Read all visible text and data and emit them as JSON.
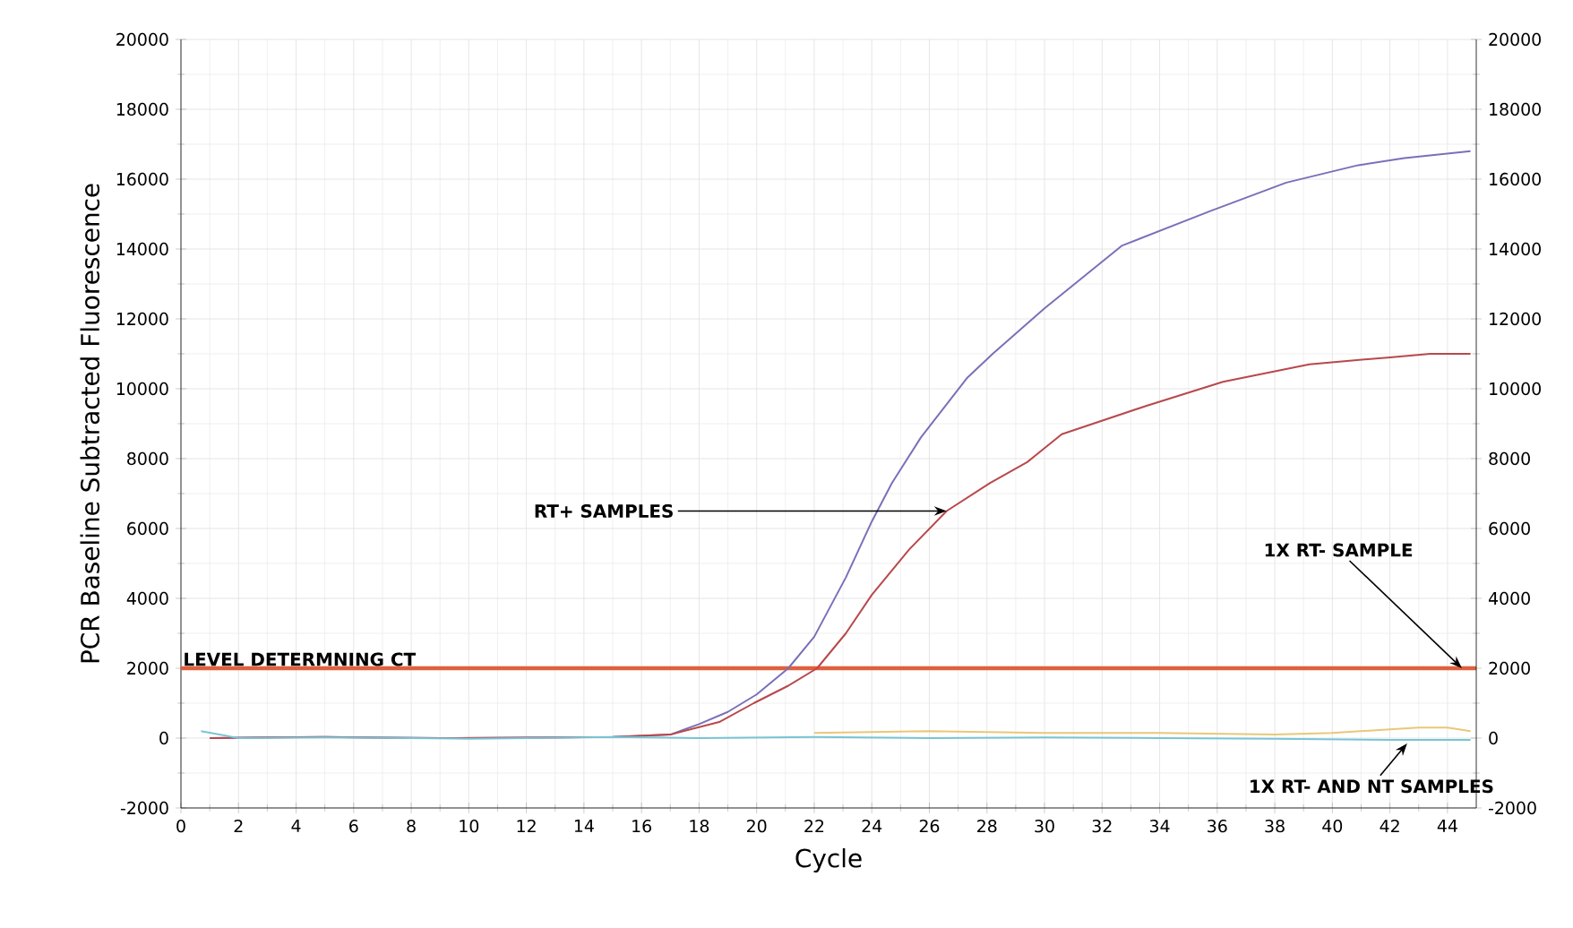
{
  "chart_data": {
    "type": "line",
    "xlabel": "Cycle",
    "ylabel": "PCR Baseline Subtracted Fluorescence",
    "xlim": [
      0,
      45
    ],
    "xticks": [
      0,
      2,
      4,
      6,
      8,
      10,
      12,
      14,
      16,
      18,
      20,
      22,
      24,
      26,
      28,
      30,
      32,
      34,
      36,
      38,
      40,
      42,
      44
    ],
    "ylim": [
      -2000,
      20000
    ],
    "yticks": [
      -2000,
      0,
      2000,
      4000,
      6000,
      8000,
      10000,
      12000,
      14000,
      16000,
      18000,
      20000
    ],
    "y2lim": [
      -2000,
      20000
    ],
    "y2ticks": [
      -2000,
      0,
      2000,
      4000,
      6000,
      8000,
      10000,
      12000,
      14000,
      16000,
      18000,
      20000
    ],
    "grid": true,
    "marker": "none",
    "line_style": "solid",
    "series": [
      {
        "color": "#7a70b8",
        "x": [
          1,
          3,
          5,
          7,
          9,
          11,
          13,
          15,
          17,
          18,
          19,
          20,
          21.1,
          22,
          23.1,
          24,
          24.7,
          25.7,
          27.3,
          28.2,
          30,
          32.7,
          35.8,
          38.4,
          40.9,
          42.5,
          44.8
        ],
        "values": [
          0,
          20,
          30,
          10,
          0,
          10,
          20,
          30,
          100,
          400,
          750,
          1250,
          2000,
          2900,
          4600,
          6200,
          7300,
          8600,
          10300,
          11000,
          12300,
          14100,
          15100,
          15900,
          16400,
          16600,
          16800
        ]
      },
      {
        "color": "#b8484c",
        "x": [
          1,
          3,
          5,
          7,
          9,
          11,
          13,
          15,
          17,
          18.7,
          19.9,
          21.1,
          22.1,
          23.1,
          24,
          25.3,
          26.6,
          28.1,
          29.4,
          30.6,
          33.5,
          36.2,
          39.2,
          42,
          43.4,
          44.8
        ],
        "values": [
          0,
          20,
          30,
          10,
          0,
          10,
          20,
          30,
          100,
          460,
          1000,
          1500,
          2000,
          3000,
          4100,
          5400,
          6500,
          7300,
          7900,
          8700,
          9500,
          10200,
          10700,
          10900,
          11000,
          11000
        ]
      },
      {
        "color": "#e8c878",
        "x": [
          22,
          26,
          30,
          34,
          38,
          40,
          42,
          43,
          44,
          44.8
        ],
        "values": [
          150,
          200,
          150,
          150,
          100,
          150,
          250,
          300,
          300,
          200
        ]
      },
      {
        "color": "#78c4d4",
        "x": [
          0.7,
          2,
          5,
          8,
          10,
          12,
          15,
          18,
          22,
          26,
          30,
          34,
          38,
          42,
          44.8
        ],
        "values": [
          200,
          0,
          20,
          0,
          -20,
          0,
          30,
          0,
          30,
          0,
          20,
          0,
          -20,
          -50,
          -50
        ]
      }
    ],
    "ref_lines": [
      {
        "axis": "y",
        "value": 2000,
        "label": "LEVEL DETERMNING CT",
        "color": "#e0603c"
      }
    ],
    "annotations": [
      {
        "text": "RT+ SAMPLES",
        "x": 26.6,
        "y": 6500
      },
      {
        "text": "1X RT- SAMPLE",
        "x": 44.5,
        "y": 2000
      },
      {
        "text": "1X RT- AND NT SAMPLES",
        "x": 42.6,
        "y": -150
      }
    ]
  }
}
